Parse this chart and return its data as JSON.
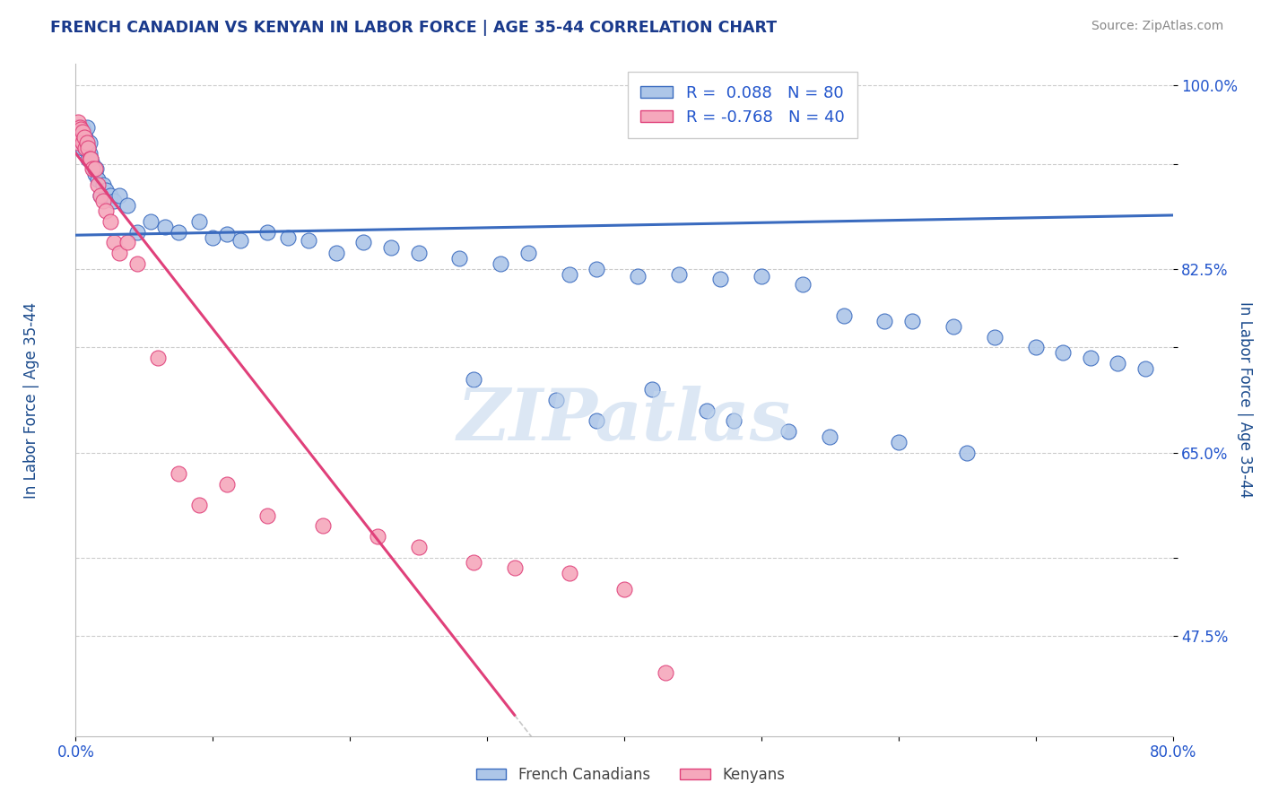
{
  "title": "FRENCH CANADIAN VS KENYAN IN LABOR FORCE | AGE 35-44 CORRELATION CHART",
  "source_text": "Source: ZipAtlas.com",
  "ylabel": "In Labor Force | Age 35-44",
  "xlim": [
    0.0,
    0.8
  ],
  "ylim": [
    0.38,
    1.02
  ],
  "xticks": [
    0.0,
    0.1,
    0.2,
    0.3,
    0.4,
    0.5,
    0.6,
    0.7,
    0.8
  ],
  "xticklabels": [
    "0.0%",
    "",
    "",
    "",
    "",
    "",
    "",
    "",
    "80.0%"
  ],
  "ytick_positions": [
    0.475,
    0.55,
    0.65,
    0.75,
    0.825,
    0.925,
    1.0
  ],
  "ytick_labels": [
    "47.5%",
    "",
    "65.0%",
    "",
    "82.5%",
    "",
    "100.0%"
  ],
  "r_french": 0.088,
  "n_french": 80,
  "r_kenyan": -0.768,
  "n_kenyan": 40,
  "french_color": "#adc6e8",
  "kenyan_color": "#f5a8bc",
  "french_line_color": "#3a6bbf",
  "kenyan_line_color": "#e0407a",
  "trendline_dashed_color": "#c8c8c8",
  "watermark_color": "#c5d8ee",
  "title_color": "#1a3a8c",
  "source_color": "#888888",
  "axis_label_color": "#1a4a8c",
  "tick_label_color": "#2255cc",
  "french_line_y0": 0.857,
  "french_line_y1": 0.876,
  "kenyan_line_y0": 0.935,
  "kenyan_line_x_end": 0.32,
  "kenyan_line_y_end": 0.4,
  "french_canadians_x": [
    0.001,
    0.001,
    0.002,
    0.002,
    0.002,
    0.003,
    0.003,
    0.004,
    0.004,
    0.005,
    0.005,
    0.005,
    0.006,
    0.006,
    0.007,
    0.007,
    0.008,
    0.008,
    0.009,
    0.009,
    0.01,
    0.01,
    0.011,
    0.012,
    0.013,
    0.014,
    0.015,
    0.016,
    0.018,
    0.02,
    0.022,
    0.025,
    0.028,
    0.032,
    0.038,
    0.045,
    0.055,
    0.065,
    0.075,
    0.09,
    0.1,
    0.11,
    0.12,
    0.14,
    0.155,
    0.17,
    0.19,
    0.21,
    0.23,
    0.25,
    0.28,
    0.31,
    0.33,
    0.36,
    0.38,
    0.41,
    0.44,
    0.47,
    0.5,
    0.53,
    0.56,
    0.59,
    0.61,
    0.64,
    0.67,
    0.7,
    0.72,
    0.74,
    0.76,
    0.78,
    0.35,
    0.29,
    0.42,
    0.46,
    0.38,
    0.48,
    0.52,
    0.55,
    0.6,
    0.65
  ],
  "french_canadians_y": [
    0.96,
    0.96,
    0.955,
    0.96,
    0.955,
    0.955,
    0.95,
    0.945,
    0.96,
    0.94,
    0.945,
    0.96,
    0.955,
    0.95,
    0.94,
    0.95,
    0.945,
    0.96,
    0.94,
    0.93,
    0.945,
    0.935,
    0.93,
    0.925,
    0.92,
    0.915,
    0.92,
    0.91,
    0.895,
    0.905,
    0.9,
    0.895,
    0.89,
    0.895,
    0.885,
    0.86,
    0.87,
    0.865,
    0.86,
    0.87,
    0.855,
    0.858,
    0.852,
    0.86,
    0.855,
    0.852,
    0.84,
    0.85,
    0.845,
    0.84,
    0.835,
    0.83,
    0.84,
    0.82,
    0.825,
    0.818,
    0.82,
    0.815,
    0.818,
    0.81,
    0.78,
    0.775,
    0.775,
    0.77,
    0.76,
    0.75,
    0.745,
    0.74,
    0.735,
    0.73,
    0.7,
    0.72,
    0.71,
    0.69,
    0.68,
    0.68,
    0.67,
    0.665,
    0.66,
    0.65
  ],
  "kenyans_x": [
    0.001,
    0.001,
    0.002,
    0.002,
    0.003,
    0.003,
    0.004,
    0.004,
    0.005,
    0.005,
    0.006,
    0.007,
    0.008,
    0.009,
    0.01,
    0.011,
    0.012,
    0.014,
    0.016,
    0.018,
    0.02,
    0.022,
    0.025,
    0.028,
    0.032,
    0.038,
    0.045,
    0.06,
    0.075,
    0.09,
    0.11,
    0.14,
    0.18,
    0.22,
    0.25,
    0.29,
    0.32,
    0.36,
    0.4,
    0.43
  ],
  "kenyans_y": [
    0.96,
    0.95,
    0.965,
    0.945,
    0.96,
    0.955,
    0.958,
    0.948,
    0.955,
    0.945,
    0.95,
    0.94,
    0.945,
    0.94,
    0.93,
    0.93,
    0.92,
    0.92,
    0.905,
    0.895,
    0.89,
    0.88,
    0.87,
    0.85,
    0.84,
    0.85,
    0.83,
    0.74,
    0.63,
    0.6,
    0.62,
    0.59,
    0.58,
    0.57,
    0.56,
    0.545,
    0.54,
    0.535,
    0.52,
    0.44
  ]
}
